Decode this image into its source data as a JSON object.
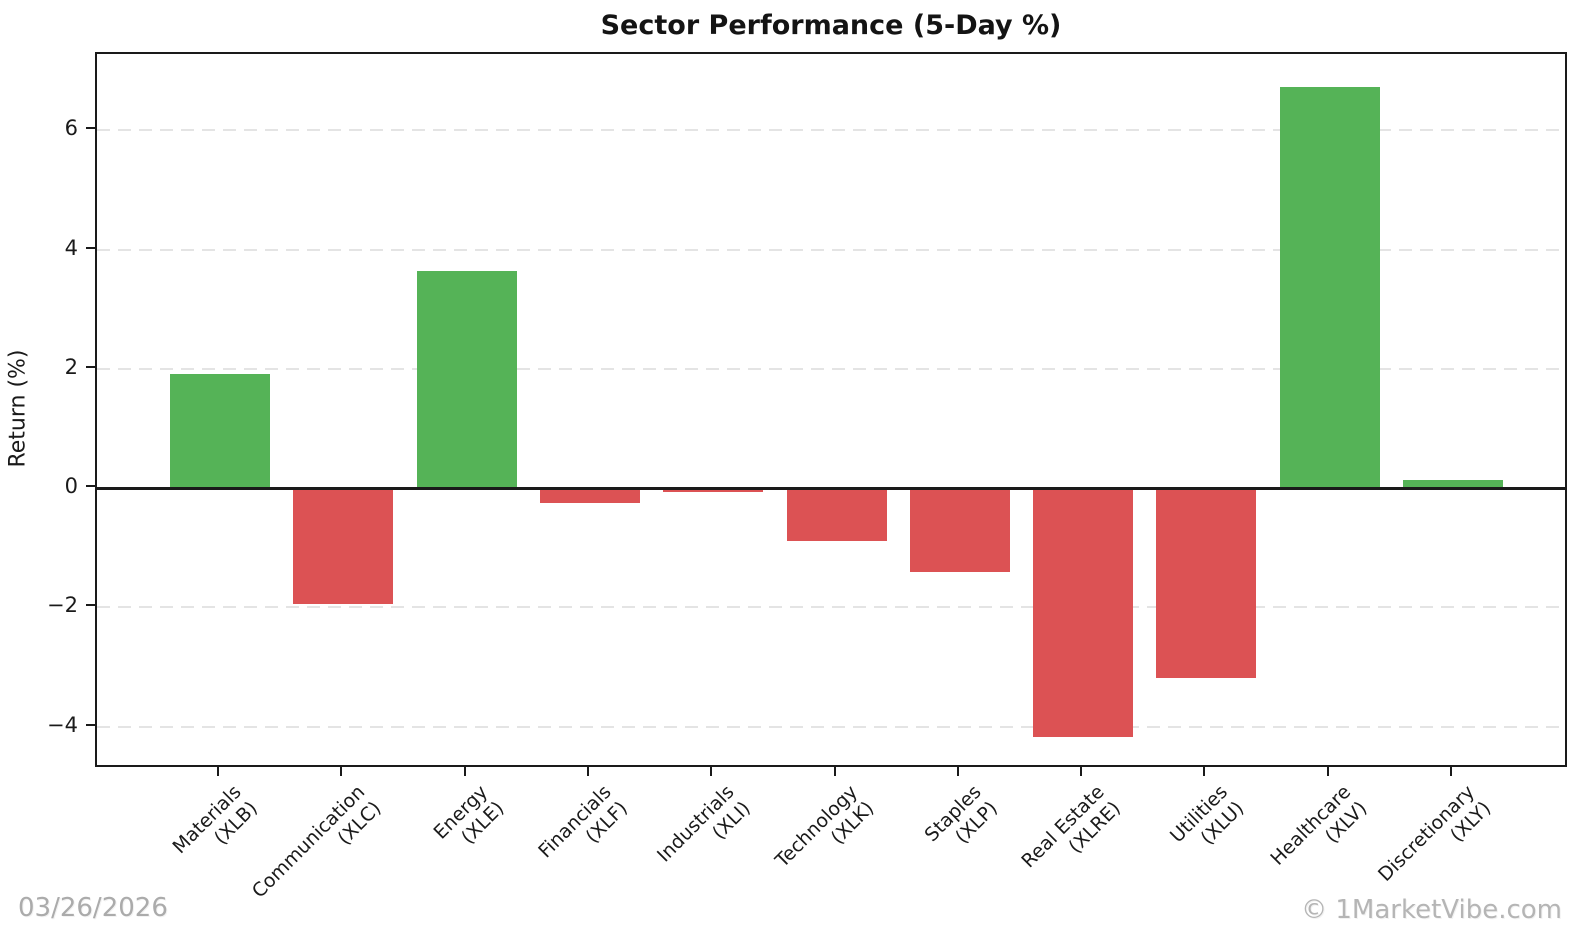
{
  "chart_data": {
    "type": "bar",
    "title": "Sector Performance (5-Day %)",
    "ylabel": "Return (%)",
    "xlabel": "",
    "categories": [
      {
        "sector": "Materials",
        "ticker": "(XLB)"
      },
      {
        "sector": "Communication",
        "ticker": "(XLC)"
      },
      {
        "sector": "Energy",
        "ticker": "(XLE)"
      },
      {
        "sector": "Financials",
        "ticker": "(XLF)"
      },
      {
        "sector": "Industrials",
        "ticker": "(XLI)"
      },
      {
        "sector": "Technology",
        "ticker": "(XLK)"
      },
      {
        "sector": "Staples",
        "ticker": "(XLP)"
      },
      {
        "sector": "Real Estate",
        "ticker": "(XLRE)"
      },
      {
        "sector": "Utilities",
        "ticker": "(XLU)"
      },
      {
        "sector": "Healthcare",
        "ticker": "(XLV)"
      },
      {
        "sector": "Discretionary",
        "ticker": "(XLY)"
      }
    ],
    "values": [
      1.92,
      -1.95,
      3.64,
      -0.25,
      -0.07,
      -0.88,
      -1.4,
      -4.17,
      -3.19,
      6.72,
      0.13
    ],
    "positive_color": "#55b357",
    "negative_color": "#dc5254",
    "yticks": [
      6,
      4,
      2,
      0,
      -2,
      -4
    ],
    "ylim": [
      -4.71,
      7.28
    ],
    "grid": {
      "axis": "y",
      "style": "dashed",
      "color": "#e4e4e4"
    },
    "legend_position": "none"
  },
  "footer": {
    "date": "03/26/2026",
    "copyright": "© 1MarketVibe.com"
  }
}
